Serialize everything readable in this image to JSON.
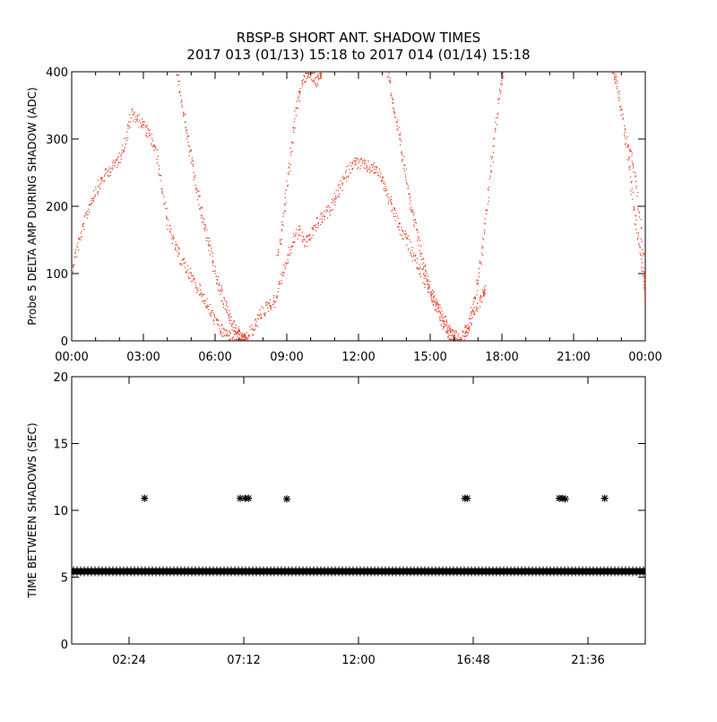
{
  "title": {
    "line1": "RBSP-B SHORT ANT. SHADOW TIMES",
    "line2": "2017 013 (01/13) 15:18 to 2017 014 (01/14) 15:18"
  },
  "colors": {
    "red_series": "#e8341c",
    "black_series": "#000000"
  },
  "chart_data": [
    {
      "type": "scatter",
      "ylabel": "Probe 5 DELTA AMP DURING SHADOW (ADC)",
      "xlabel": "",
      "x_unit": "hours",
      "xlim": [
        0,
        24
      ],
      "ylim": [
        0,
        400
      ],
      "xticks": [
        0,
        3,
        6,
        9,
        12,
        15,
        18,
        21,
        24
      ],
      "xtick_labels": [
        "00:00",
        "03:00",
        "06:00",
        "09:00",
        "12:00",
        "15:00",
        "18:00",
        "21:00",
        "00:00"
      ],
      "yticks": [
        0,
        100,
        200,
        300,
        400
      ],
      "ytick_labels": [
        "0",
        "100",
        "200",
        "300",
        "400"
      ],
      "grid": false,
      "series": [
        {
          "color": "#e8341c",
          "x": [
            0.0,
            0.25,
            0.5,
            0.75,
            1.0,
            1.25,
            1.5,
            1.75,
            2.0,
            2.25,
            2.5,
            2.75,
            3.0,
            3.25,
            3.5,
            3.75,
            4.0,
            4.25,
            4.5,
            4.75,
            5.0,
            5.25,
            5.5,
            5.75,
            6.0,
            6.25,
            6.5,
            6.75,
            7.0,
            7.25,
            7.5,
            7.75,
            8.0,
            8.25,
            8.5,
            8.75,
            9.0,
            9.25,
            9.5,
            9.75,
            10.0,
            10.25,
            10.5,
            10.75,
            11.0,
            11.25,
            11.5,
            11.75,
            12.0,
            12.25,
            12.5,
            12.75,
            13.0,
            13.25,
            13.5,
            13.75,
            14.0,
            14.25,
            14.5,
            14.75,
            15.0,
            15.25,
            15.5,
            15.75,
            16.0,
            16.25,
            16.5,
            16.75,
            17.0,
            17.25,
            17.5,
            17.75,
            18.0,
            18.25,
            18.5,
            18.75,
            19.0,
            19.25,
            19.5,
            19.75,
            20.0,
            20.25,
            20.5,
            20.75,
            21.0,
            21.25,
            21.5,
            21.75,
            22.0,
            22.25,
            22.5,
            22.75,
            23.0,
            23.25,
            23.5,
            23.75,
            24.0
          ],
          "y": [
            110,
            145,
            175,
            205,
            225,
            240,
            252,
            262,
            275,
            300,
            340,
            330,
            320,
            305,
            285,
            230,
            175,
            145,
            125,
            110,
            95,
            80,
            65,
            45,
            30,
            15,
            10,
            8,
            5,
            2,
            15,
            30,
            45,
            55,
            60,
            95,
            120,
            150,
            165,
            145,
            160,
            175,
            185,
            195,
            210,
            230,
            250,
            265,
            265,
            260,
            258,
            255,
            240,
            210,
            190,
            165,
            150,
            130,
            110,
            90,
            75,
            55,
            35,
            20,
            10,
            5,
            15,
            35,
            55,
            75,
            null,
            null,
            null,
            null,
            null,
            null,
            null,
            null,
            null,
            null,
            null,
            null,
            null,
            null,
            null,
            null,
            null,
            null,
            null,
            null,
            null,
            null,
            null,
            300,
            260,
            180,
            90
          ]
        },
        {
          "color": "#e8341c",
          "x": [
            4.4,
            4.6,
            4.8,
            5.0,
            5.2,
            5.4,
            5.6,
            5.8,
            6.0,
            6.2,
            6.4,
            6.6,
            6.8,
            7.0,
            7.2
          ],
          "y": [
            400,
            355,
            310,
            270,
            230,
            195,
            160,
            130,
            100,
            75,
            55,
            38,
            22,
            10,
            3
          ]
        },
        {
          "color": "#e8341c",
          "x": [
            8.6,
            8.8,
            9.0,
            9.2,
            9.4,
            9.6,
            9.8,
            10.0,
            10.2,
            10.4
          ],
          "y": [
            120,
            175,
            235,
            300,
            350,
            385,
            395,
            400,
            385,
            400
          ]
        },
        {
          "color": "#e8341c",
          "x": [
            13.2,
            13.4,
            13.6,
            13.8,
            14.0,
            14.2,
            14.4,
            14.6,
            14.8,
            15.0,
            15.2,
            15.4,
            15.6,
            15.8,
            16.0
          ],
          "y": [
            400,
            360,
            320,
            280,
            240,
            200,
            165,
            130,
            100,
            75,
            55,
            38,
            22,
            10,
            3
          ]
        },
        {
          "color": "#e8341c",
          "x": [
            16.4,
            16.6,
            16.8,
            17.0,
            17.2,
            17.4,
            17.6,
            17.8,
            18.0
          ],
          "y": [
            10,
            28,
            55,
            95,
            150,
            215,
            280,
            345,
            400
          ]
        },
        {
          "color": "#e8341c",
          "x": [
            22.6,
            22.8,
            23.0,
            23.2,
            23.4,
            23.6,
            23.8,
            24.0
          ],
          "y": [
            400,
            385,
            340,
            290,
            230,
            170,
            120,
            70
          ]
        }
      ]
    },
    {
      "type": "scatter",
      "ylabel": "TIME BETWEEN SHADOWS (SEC)",
      "xlabel": "",
      "x_unit": "hours",
      "xlim": [
        0,
        24
      ],
      "ylim": [
        0,
        20
      ],
      "xticks": [
        2.4,
        7.2,
        12.0,
        16.8,
        21.6
      ],
      "xtick_labels": [
        "02:24",
        "07:12",
        "12:00",
        "16:48",
        "21:36"
      ],
      "yticks": [
        0,
        5,
        10,
        15,
        20
      ],
      "ytick_labels": [
        "0",
        "5",
        "10",
        "15",
        "20"
      ],
      "grid": false,
      "baseline": {
        "value": 5.4,
        "x_range": [
          0,
          24
        ]
      },
      "series": [
        {
          "color": "#000000",
          "marker": "asterisk",
          "x": [
            3.05,
            7.05,
            7.25,
            7.4,
            9.0,
            16.45,
            16.55,
            20.4,
            20.55,
            20.65,
            22.3
          ],
          "y": [
            10.9,
            10.9,
            10.9,
            10.9,
            10.85,
            10.9,
            10.9,
            10.9,
            10.9,
            10.85,
            10.9
          ]
        }
      ]
    }
  ]
}
